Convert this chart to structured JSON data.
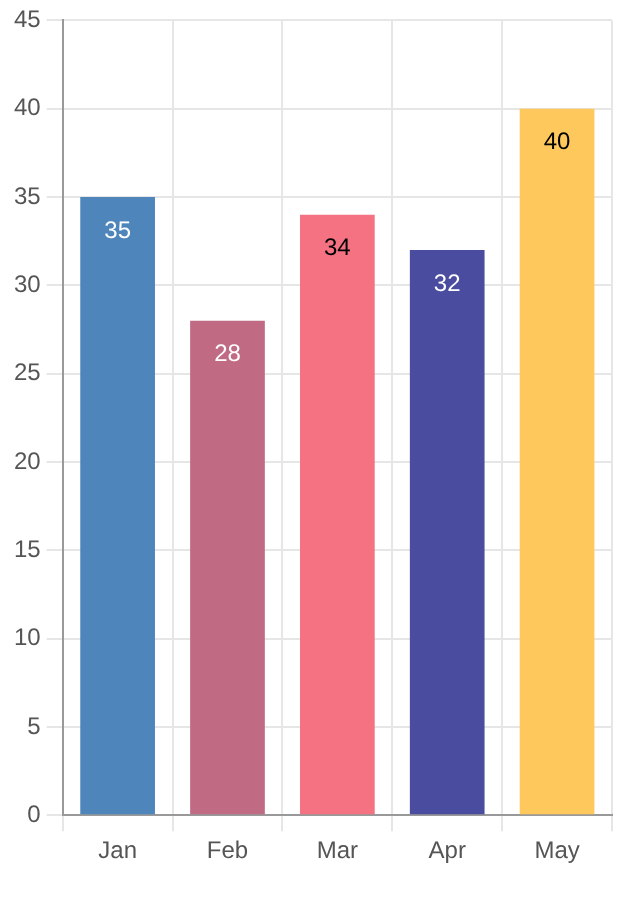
{
  "chart_data": {
    "type": "bar",
    "categories": [
      "Jan",
      "Feb",
      "Mar",
      "Apr",
      "May"
    ],
    "values": [
      35,
      28,
      34,
      32,
      40
    ],
    "colors": [
      "#4e86bb",
      "#c06a83",
      "#f47282",
      "#4a4ca0",
      "#fec85c"
    ],
    "ylim": [
      0,
      45
    ],
    "yticks": [
      0,
      5,
      10,
      15,
      20,
      25,
      30,
      35,
      40,
      45
    ],
    "grid": true,
    "data_labels": true
  }
}
